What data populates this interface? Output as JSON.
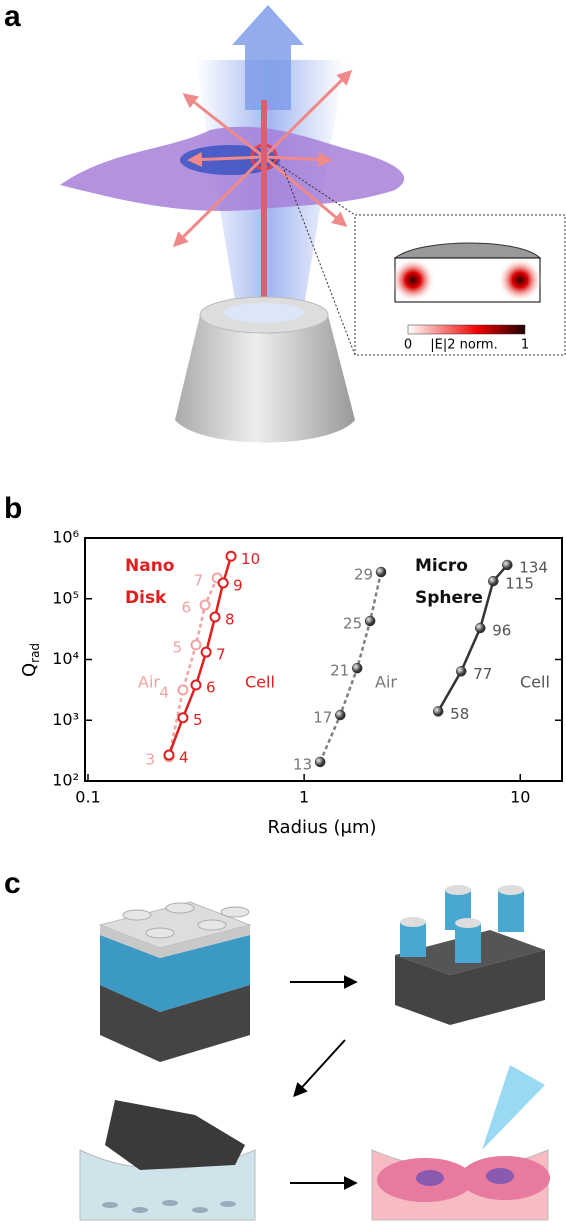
{
  "panels": {
    "a": {
      "label": "a",
      "colorbar": {
        "min": "0",
        "title": "|E|2 norm.",
        "max": "1"
      }
    },
    "b": {
      "label": "b"
    },
    "c": {
      "label": "c"
    }
  },
  "chart_data": {
    "type": "line",
    "xlabel": "Radius (μm)",
    "ylabel": {
      "main": "Q",
      "sub": "rad"
    },
    "xscale": "log",
    "yscale": "log",
    "xlim": [
      0.1,
      15.6
    ],
    "ylim": [
      100,
      1000000
    ],
    "xticks": [
      0.1,
      1,
      10
    ],
    "yticks": [
      {
        "value": 100,
        "label": "10²"
      },
      {
        "value": 1000,
        "label": "10³"
      },
      {
        "value": 10000,
        "label": "10⁴"
      },
      {
        "value": 100000,
        "label": "10⁵"
      },
      {
        "value": 1000000,
        "label": "10⁶"
      }
    ],
    "groups": [
      [
        "Nano",
        "Disk"
      ],
      [
        "Micro",
        "Sphere"
      ]
    ],
    "group_colors": [
      "#e02020",
      "#111111"
    ],
    "series": [
      {
        "name": "Air",
        "color": "#f2a3a3",
        "dashed": true,
        "marker": "open",
        "x": [
          0.237,
          0.275,
          0.316,
          0.348,
          0.396
        ],
        "values": [
          250,
          3150,
          17400,
          79000,
          220000
        ],
        "point_labels": [
          3,
          4,
          5,
          6,
          7
        ]
      },
      {
        "name": "Cell",
        "color": "#e02020",
        "dashed": false,
        "marker": "open",
        "x": [
          0.237,
          0.275,
          0.316,
          0.352,
          0.387,
          0.422,
          0.459
        ],
        "values": [
          268,
          1100,
          3800,
          13200,
          50000,
          182000,
          500000
        ],
        "point_labels": [
          4,
          5,
          6,
          7,
          8,
          9,
          10
        ]
      },
      {
        "name": "Air",
        "color": "#808080",
        "dashed": true,
        "marker": "sphere",
        "x": [
          1.186,
          1.47,
          1.76,
          2.02,
          2.27
        ],
        "values": [
          206,
          1220,
          7200,
          43000,
          275000
        ],
        "point_labels": [
          13,
          17,
          21,
          25,
          29
        ]
      },
      {
        "name": "Cell",
        "color": "#333333",
        "dashed": false,
        "marker": "sphere",
        "x": [
          4.17,
          5.33,
          6.53,
          7.5,
          8.71
        ],
        "values": [
          1400,
          6400,
          33000,
          195000,
          360000
        ],
        "point_labels": [
          58,
          77,
          96,
          115,
          134
        ]
      }
    ]
  }
}
